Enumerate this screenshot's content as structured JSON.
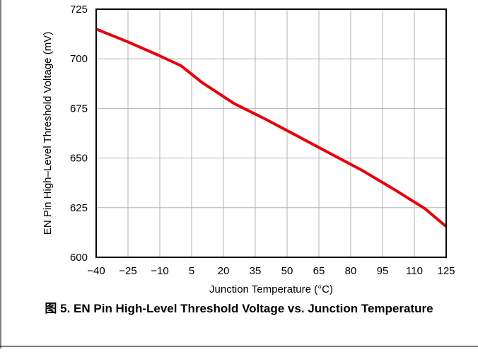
{
  "caption": "图 5. EN Pin High-Level Threshold Voltage vs. Junction Temperature",
  "chart_data": {
    "type": "line",
    "title": "",
    "xlabel": "Junction Temperature (°C)",
    "ylabel": "EN Pin High–Level Threshold Voltage (mV)",
    "xlim": [
      -40,
      125
    ],
    "ylim": [
      600,
      725
    ],
    "x_ticks": [
      -40,
      -25,
      -10,
      5,
      20,
      35,
      50,
      65,
      80,
      95,
      110,
      125
    ],
    "x_tick_labels": [
      "−40",
      "−25",
      "−10",
      "5",
      "20",
      "35",
      "50",
      "65",
      "80",
      "95",
      "110",
      "125"
    ],
    "y_ticks": [
      600,
      625,
      650,
      675,
      700,
      725
    ],
    "y_tick_labels": [
      "600",
      "625",
      "650",
      "675",
      "700",
      "725"
    ],
    "grid": true,
    "series": [
      {
        "color": "#e8000b",
        "x": [
          -40,
          -25,
          -10,
          0,
          10,
          25,
          40,
          55,
          70,
          85,
          100,
          115,
          125
        ],
        "y": [
          715,
          708.5,
          701.5,
          696.5,
          688,
          677.5,
          669.5,
          661,
          652.5,
          644,
          634.5,
          624.5,
          615.5
        ]
      }
    ]
  }
}
